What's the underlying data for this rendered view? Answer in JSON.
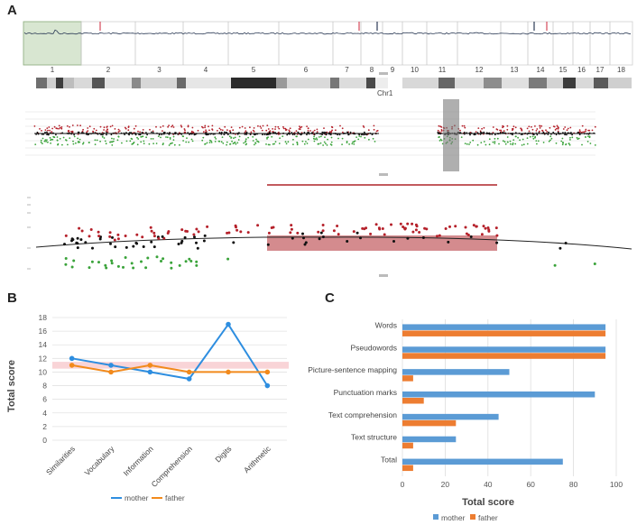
{
  "panels": {
    "a": "A",
    "b": "B",
    "c": "C"
  },
  "genome": {
    "chromosomes": [
      "1",
      "2",
      "3",
      "4",
      "5",
      "6",
      "7",
      "8",
      "9",
      "10",
      "11",
      "12",
      "13",
      "14",
      "15",
      "16",
      "17",
      "18"
    ],
    "ideogram_label": "Chr1"
  },
  "colors": {
    "mother": "#2e8ee0",
    "father": "#f28a1c",
    "gain": "#b5202a",
    "loss": "#3aa33a",
    "neutral": "#111111",
    "highlight": "#c25a5e",
    "selection": "#a9c79a"
  },
  "chart_data": [
    {
      "type": "line",
      "title": "B",
      "categories": [
        "Similarities",
        "Vocabulary",
        "Information",
        "Comprehension",
        "Digits",
        "Arithmetic"
      ],
      "series": [
        {
          "name": "mother",
          "values": [
            12,
            11,
            10,
            9,
            17,
            8
          ]
        },
        {
          "name": "father",
          "values": [
            11,
            10,
            11,
            10,
            10,
            10
          ]
        }
      ],
      "reference_band": [
        10.5,
        11.5
      ],
      "ylabel": "Total score",
      "yticks": [
        0,
        2,
        4,
        6,
        8,
        10,
        12,
        14,
        16,
        18
      ],
      "ylim": [
        0,
        18
      ],
      "legend": [
        "mother",
        "father"
      ]
    },
    {
      "type": "bar",
      "orientation": "horizontal",
      "title": "C",
      "categories": [
        "Words",
        "Pseudowords",
        "Picture-sentence mapping",
        "Punctuation marks",
        "Text comprehension",
        "Text structure",
        "Total"
      ],
      "series": [
        {
          "name": "mother",
          "values": [
            95,
            95,
            50,
            90,
            45,
            25,
            75
          ]
        },
        {
          "name": "father",
          "values": [
            95,
            95,
            5,
            10,
            25,
            5,
            5
          ]
        }
      ],
      "xlabel": "Total score",
      "xticks": [
        0,
        20,
        40,
        60,
        80,
        100
      ],
      "xlim": [
        0,
        100
      ],
      "legend": [
        "mother",
        "father"
      ]
    }
  ]
}
